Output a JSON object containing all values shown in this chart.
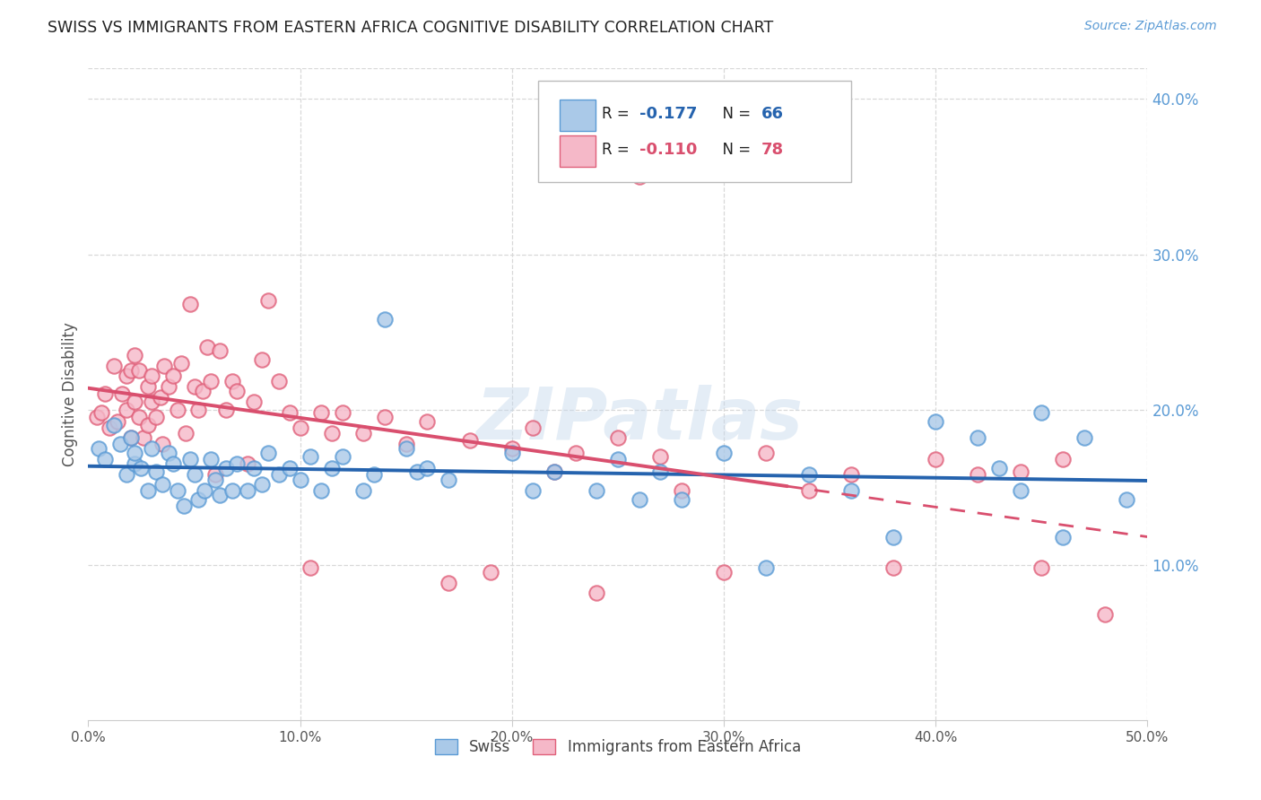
{
  "title": "SWISS VS IMMIGRANTS FROM EASTERN AFRICA COGNITIVE DISABILITY CORRELATION CHART",
  "source": "Source: ZipAtlas.com",
  "ylabel": "Cognitive Disability",
  "xlim": [
    0.0,
    0.5
  ],
  "ylim": [
    0.0,
    0.42
  ],
  "xticks": [
    0.0,
    0.1,
    0.2,
    0.3,
    0.4,
    0.5
  ],
  "yticks": [
    0.1,
    0.2,
    0.3,
    0.4
  ],
  "xtick_labels": [
    "0.0%",
    "",
    "",
    "",
    "",
    "50.0%"
  ],
  "ytick_labels": [
    "10.0%",
    "20.0%",
    "30.0%",
    "40.0%"
  ],
  "legend_labels": [
    "Swiss",
    "Immigrants from Eastern Africa"
  ],
  "swiss_color": "#aac9e8",
  "swiss_edge_color": "#5b9bd5",
  "immig_color": "#f5b8c8",
  "immig_edge_color": "#e0607a",
  "swiss_line_color": "#2563ae",
  "immig_line_color": "#d94f6e",
  "R_swiss": -0.177,
  "N_swiss": 66,
  "R_immig": -0.11,
  "N_immig": 78,
  "grid_color": "#d8d8d8",
  "background_color": "#ffffff",
  "title_color": "#222222",
  "source_color": "#5b9bd5",
  "axis_color": "#cccccc",
  "watermark": "ZIPatlas",
  "swiss_x": [
    0.005,
    0.008,
    0.012,
    0.015,
    0.018,
    0.02,
    0.022,
    0.022,
    0.025,
    0.028,
    0.03,
    0.032,
    0.035,
    0.038,
    0.04,
    0.042,
    0.045,
    0.048,
    0.05,
    0.052,
    0.055,
    0.058,
    0.06,
    0.062,
    0.065,
    0.068,
    0.07,
    0.075,
    0.078,
    0.082,
    0.085,
    0.09,
    0.095,
    0.1,
    0.105,
    0.11,
    0.115,
    0.12,
    0.13,
    0.135,
    0.14,
    0.15,
    0.155,
    0.16,
    0.17,
    0.2,
    0.21,
    0.22,
    0.24,
    0.25,
    0.26,
    0.27,
    0.28,
    0.3,
    0.32,
    0.34,
    0.36,
    0.38,
    0.4,
    0.42,
    0.43,
    0.44,
    0.45,
    0.46,
    0.47,
    0.49
  ],
  "swiss_y": [
    0.175,
    0.168,
    0.19,
    0.178,
    0.158,
    0.182,
    0.165,
    0.172,
    0.162,
    0.148,
    0.175,
    0.16,
    0.152,
    0.172,
    0.165,
    0.148,
    0.138,
    0.168,
    0.158,
    0.142,
    0.148,
    0.168,
    0.155,
    0.145,
    0.162,
    0.148,
    0.165,
    0.148,
    0.162,
    0.152,
    0.172,
    0.158,
    0.162,
    0.155,
    0.17,
    0.148,
    0.162,
    0.17,
    0.148,
    0.158,
    0.258,
    0.175,
    0.16,
    0.162,
    0.155,
    0.172,
    0.148,
    0.16,
    0.148,
    0.168,
    0.142,
    0.16,
    0.142,
    0.172,
    0.098,
    0.158,
    0.148,
    0.118,
    0.192,
    0.182,
    0.162,
    0.148,
    0.198,
    0.118,
    0.182,
    0.142
  ],
  "immig_x": [
    0.004,
    0.006,
    0.008,
    0.01,
    0.012,
    0.014,
    0.016,
    0.018,
    0.018,
    0.02,
    0.02,
    0.022,
    0.022,
    0.024,
    0.024,
    0.026,
    0.028,
    0.028,
    0.03,
    0.03,
    0.032,
    0.034,
    0.035,
    0.036,
    0.038,
    0.04,
    0.042,
    0.044,
    0.046,
    0.048,
    0.05,
    0.052,
    0.054,
    0.056,
    0.058,
    0.06,
    0.062,
    0.065,
    0.068,
    0.07,
    0.075,
    0.078,
    0.082,
    0.085,
    0.09,
    0.095,
    0.1,
    0.105,
    0.11,
    0.115,
    0.12,
    0.13,
    0.14,
    0.15,
    0.16,
    0.17,
    0.18,
    0.19,
    0.2,
    0.21,
    0.22,
    0.23,
    0.24,
    0.25,
    0.26,
    0.27,
    0.28,
    0.3,
    0.32,
    0.34,
    0.36,
    0.38,
    0.4,
    0.42,
    0.44,
    0.45,
    0.46,
    0.48
  ],
  "immig_y": [
    0.195,
    0.198,
    0.21,
    0.188,
    0.228,
    0.192,
    0.21,
    0.222,
    0.2,
    0.182,
    0.225,
    0.235,
    0.205,
    0.225,
    0.195,
    0.182,
    0.215,
    0.19,
    0.205,
    0.222,
    0.195,
    0.208,
    0.178,
    0.228,
    0.215,
    0.222,
    0.2,
    0.23,
    0.185,
    0.268,
    0.215,
    0.2,
    0.212,
    0.24,
    0.218,
    0.158,
    0.238,
    0.2,
    0.218,
    0.212,
    0.165,
    0.205,
    0.232,
    0.27,
    0.218,
    0.198,
    0.188,
    0.098,
    0.198,
    0.185,
    0.198,
    0.185,
    0.195,
    0.178,
    0.192,
    0.088,
    0.18,
    0.095,
    0.175,
    0.188,
    0.16,
    0.172,
    0.082,
    0.182,
    0.35,
    0.17,
    0.148,
    0.095,
    0.172,
    0.148,
    0.158,
    0.098,
    0.168,
    0.158,
    0.16,
    0.098,
    0.168,
    0.068
  ]
}
